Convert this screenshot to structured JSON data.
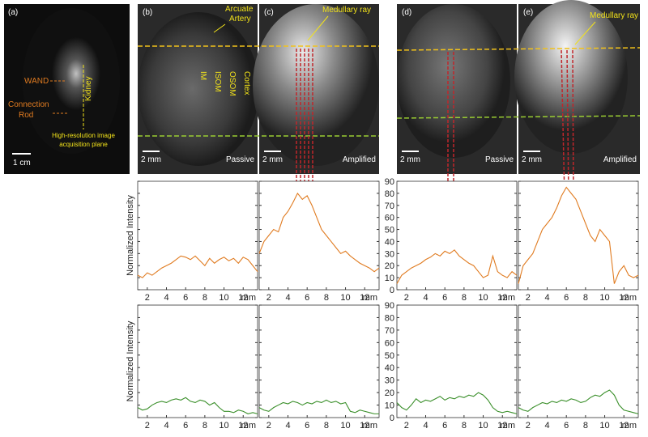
{
  "panels": [
    {
      "label": "(a)",
      "wand": "WAND",
      "rod": [
        "Connection",
        "Rod"
      ],
      "kidney": "Kidney",
      "plane": [
        "High-resolution image",
        "acquisition plane"
      ],
      "scale": "1 cm"
    },
    {
      "label": "(b)",
      "artery": [
        "Arcuate",
        "Artery"
      ],
      "zones": [
        "IM",
        "ISOM",
        "OSOM",
        "Cortex"
      ],
      "scale": "2 mm",
      "mode": "Passive"
    },
    {
      "label": "(c)",
      "ray": "Medullary ray",
      "scale": "2 mm",
      "mode": "Amplified"
    },
    {
      "label": "(d)",
      "scale": "2 mm",
      "mode": "Passive"
    },
    {
      "label": "(e)",
      "ray": "Medullary ray",
      "scale": "2 mm",
      "mode": "Amplified"
    }
  ],
  "chart_data": [
    {
      "type": "line",
      "ylabel": "Normalized Intensity",
      "xlabel": "mm",
      "show_ytick_labels": false,
      "x": [
        1,
        1.5,
        2,
        2.5,
        3,
        3.5,
        4,
        4.5,
        5,
        5.5,
        6,
        6.5,
        7,
        7.5,
        8,
        8.5,
        9,
        9.5,
        10,
        10.5,
        11,
        11.5,
        12,
        12.5,
        13,
        13.5
      ],
      "series": [
        {
          "color": "#e07b20",
          "values": [
            12,
            10,
            14,
            12,
            15,
            18,
            20,
            22,
            25,
            28,
            27,
            25,
            28,
            24,
            20,
            26,
            22,
            25,
            27,
            24,
            26,
            22,
            27,
            25,
            20,
            15
          ]
        }
      ],
      "xlim": [
        1,
        13.5
      ],
      "ylim": [
        0,
        90
      ],
      "xticks": [
        2,
        4,
        6,
        8,
        10,
        12
      ],
      "yticks": [
        0,
        10,
        20,
        30,
        40,
        50,
        60,
        70,
        80,
        90
      ]
    },
    {
      "type": "line",
      "xlabel": "mm",
      "show_ytick_labels": false,
      "x": [
        1,
        1.5,
        2,
        2.5,
        3,
        3.5,
        4,
        4.5,
        5,
        5.5,
        6,
        6.5,
        7,
        7.5,
        8,
        8.5,
        9,
        9.5,
        10,
        10.5,
        11,
        11.5,
        12,
        12.5,
        13,
        13.5
      ],
      "series": [
        {
          "color": "#e07b20",
          "values": [
            30,
            40,
            45,
            50,
            48,
            60,
            65,
            72,
            80,
            75,
            78,
            70,
            60,
            50,
            45,
            40,
            35,
            30,
            32,
            28,
            25,
            22,
            20,
            18,
            15,
            18
          ]
        }
      ],
      "xlim": [
        1,
        13.5
      ],
      "ylim": [
        0,
        90
      ],
      "xticks": [
        2,
        4,
        6,
        8,
        10,
        12
      ],
      "yticks": [
        0,
        10,
        20,
        30,
        40,
        50,
        60,
        70,
        80,
        90
      ]
    },
    {
      "type": "line",
      "xlabel": "mm",
      "show_ytick_labels": true,
      "x": [
        1,
        1.5,
        2,
        2.5,
        3,
        3.5,
        4,
        4.5,
        5,
        5.5,
        6,
        6.5,
        7,
        7.5,
        8,
        8.5,
        9,
        9.5,
        10,
        10.5,
        11,
        11.5,
        12,
        12.5,
        13,
        13.5
      ],
      "series": [
        {
          "color": "#e07b20",
          "values": [
            5,
            12,
            15,
            18,
            20,
            22,
            25,
            27,
            30,
            28,
            32,
            30,
            33,
            28,
            25,
            22,
            20,
            15,
            10,
            12,
            28,
            15,
            12,
            10,
            15,
            12
          ]
        }
      ],
      "xlim": [
        1,
        13.5
      ],
      "ylim": [
        0,
        90
      ],
      "xticks": [
        2,
        4,
        6,
        8,
        10,
        12
      ],
      "yticks": [
        0,
        10,
        20,
        30,
        40,
        50,
        60,
        70,
        80,
        90
      ]
    },
    {
      "type": "line",
      "xlabel": "mm",
      "show_ytick_labels": false,
      "x": [
        1,
        1.5,
        2,
        2.5,
        3,
        3.5,
        4,
        4.5,
        5,
        5.5,
        6,
        6.5,
        7,
        7.5,
        8,
        8.5,
        9,
        9.5,
        10,
        10.5,
        11,
        11.5,
        12,
        12.5,
        13,
        13.5
      ],
      "series": [
        {
          "color": "#e07b20",
          "values": [
            5,
            20,
            25,
            30,
            40,
            50,
            55,
            60,
            68,
            78,
            85,
            80,
            75,
            65,
            55,
            45,
            40,
            50,
            45,
            40,
            5,
            15,
            20,
            12,
            10,
            12
          ]
        }
      ],
      "xlim": [
        1,
        13.5
      ],
      "ylim": [
        0,
        90
      ],
      "xticks": [
        2,
        4,
        6,
        8,
        10,
        12
      ],
      "yticks": [
        0,
        10,
        20,
        30,
        40,
        50,
        60,
        70,
        80,
        90
      ]
    },
    {
      "type": "line",
      "ylabel": "Normalized Intensity",
      "xlabel": "mm",
      "show_ytick_labels": false,
      "x": [
        1,
        1.5,
        2,
        2.5,
        3,
        3.5,
        4,
        4.5,
        5,
        5.5,
        6,
        6.5,
        7,
        7.5,
        8,
        8.5,
        9,
        9.5,
        10,
        10.5,
        11,
        11.5,
        12,
        12.5,
        13,
        13.5
      ],
      "series": [
        {
          "color": "#3a8f2a",
          "values": [
            8,
            6,
            7,
            10,
            12,
            13,
            12,
            14,
            15,
            14,
            16,
            13,
            12,
            14,
            13,
            10,
            12,
            8,
            5,
            5,
            4,
            6,
            5,
            3,
            4,
            3
          ]
        }
      ],
      "xlim": [
        1,
        13.5
      ],
      "ylim": [
        0,
        90
      ],
      "xticks": [
        2,
        4,
        6,
        8,
        10,
        12
      ],
      "yticks": [
        0,
        10,
        20,
        30,
        40,
        50,
        60,
        70,
        80,
        90
      ]
    },
    {
      "type": "line",
      "xlabel": "mm",
      "show_ytick_labels": false,
      "x": [
        1,
        1.5,
        2,
        2.5,
        3,
        3.5,
        4,
        4.5,
        5,
        5.5,
        6,
        6.5,
        7,
        7.5,
        8,
        8.5,
        9,
        9.5,
        10,
        10.5,
        11,
        11.5,
        12,
        12.5,
        13,
        13.5
      ],
      "series": [
        {
          "color": "#3a8f2a",
          "values": [
            8,
            6,
            5,
            8,
            10,
            12,
            11,
            13,
            12,
            10,
            12,
            11,
            13,
            12,
            14,
            12,
            13,
            11,
            12,
            5,
            4,
            6,
            5,
            4,
            3,
            3
          ]
        }
      ],
      "xlim": [
        1,
        13.5
      ],
      "ylim": [
        0,
        90
      ],
      "xticks": [
        2,
        4,
        6,
        8,
        10,
        12
      ],
      "yticks": [
        0,
        10,
        20,
        30,
        40,
        50,
        60,
        70,
        80,
        90
      ]
    },
    {
      "type": "line",
      "xlabel": "mm",
      "show_ytick_labels": true,
      "x": [
        1,
        1.5,
        2,
        2.5,
        3,
        3.5,
        4,
        4.5,
        5,
        5.5,
        6,
        6.5,
        7,
        7.5,
        8,
        8.5,
        9,
        9.5,
        10,
        10.5,
        11,
        11.5,
        12,
        12.5,
        13,
        13.5
      ],
      "series": [
        {
          "color": "#3a8f2a",
          "values": [
            12,
            8,
            6,
            10,
            15,
            12,
            14,
            13,
            15,
            17,
            14,
            16,
            15,
            17,
            16,
            18,
            17,
            20,
            18,
            14,
            8,
            5,
            4,
            5,
            4,
            3
          ]
        }
      ],
      "xlim": [
        1,
        13.5
      ],
      "ylim": [
        0,
        90
      ],
      "xticks": [
        2,
        4,
        6,
        8,
        10,
        12
      ],
      "yticks": [
        0,
        10,
        20,
        30,
        40,
        50,
        60,
        70,
        80,
        90
      ]
    },
    {
      "type": "line",
      "xlabel": "mm",
      "show_ytick_labels": false,
      "x": [
        1,
        1.5,
        2,
        2.5,
        3,
        3.5,
        4,
        4.5,
        5,
        5.5,
        6,
        6.5,
        7,
        7.5,
        8,
        8.5,
        9,
        9.5,
        10,
        10.5,
        11,
        11.5,
        12,
        12.5,
        13,
        13.5
      ],
      "series": [
        {
          "color": "#3a8f2a",
          "values": [
            8,
            6,
            5,
            8,
            10,
            12,
            11,
            13,
            12,
            14,
            13,
            15,
            14,
            12,
            13,
            16,
            18,
            17,
            20,
            22,
            18,
            10,
            6,
            5,
            4,
            3
          ]
        }
      ],
      "xlim": [
        1,
        13.5
      ],
      "ylim": [
        0,
        90
      ],
      "xticks": [
        2,
        4,
        6,
        8,
        10,
        12
      ],
      "yticks": [
        0,
        10,
        20,
        30,
        40,
        50,
        60,
        70,
        80,
        90
      ]
    }
  ]
}
